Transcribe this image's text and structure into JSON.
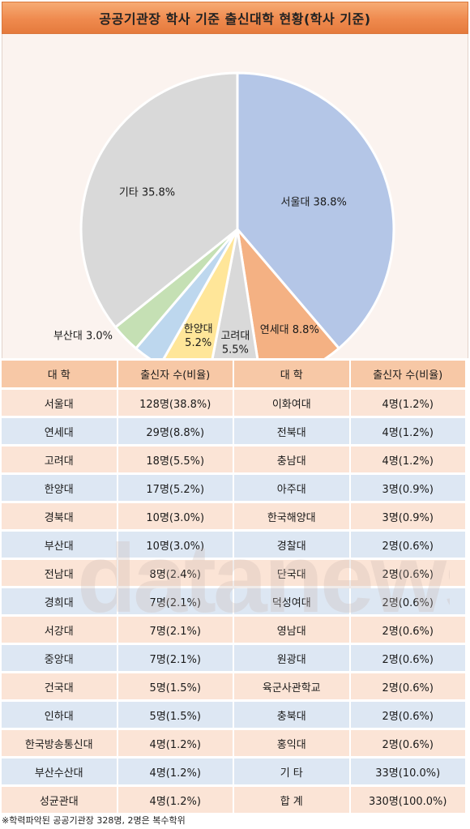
{
  "title": "공공기관장 학사 기준 출신대학 현황(학사 기준)",
  "chart_data": {
    "type": "pie",
    "title": "공공기관장 학사 기준 출신대학 현황(학사 기준)",
    "slices": [
      {
        "label": "서울대",
        "value": 38.8,
        "display": "서울대 38.8%",
        "color": "#b4c6e7"
      },
      {
        "label": "연세대",
        "value": 8.8,
        "display": "연세대 8.8%",
        "color": "#f4b183"
      },
      {
        "label": "고려대",
        "value": 5.5,
        "display": "고려대\n5.5%",
        "color": "#d9d9d9"
      },
      {
        "label": "한양대",
        "value": 5.2,
        "display": "한양대\n5.2%",
        "color": "#ffe699"
      },
      {
        "label": "경북대",
        "value": 3.0,
        "display": "경북대 3.0%",
        "color": "#bdd7ee"
      },
      {
        "label": "부산대",
        "value": 3.0,
        "display": "부산대 3.0%",
        "color": "#c5e0b4"
      },
      {
        "label": "기타",
        "value": 35.8,
        "display": "기타 35.8%",
        "color": "#d9d9d9"
      }
    ]
  },
  "table": {
    "headers": [
      "대 학",
      "출신자 수(비율)",
      "대 학",
      "출신자 수(비율)"
    ],
    "rows": [
      [
        "서울대",
        "128명(38.8%)",
        "이화여대",
        "4명(1.2%)"
      ],
      [
        "연세대",
        "29명(8.8%)",
        "전북대",
        "4명(1.2%)"
      ],
      [
        "고려대",
        "18명(5.5%)",
        "충남대",
        "4명(1.2%)"
      ],
      [
        "한양대",
        "17명(5.2%)",
        "아주대",
        "3명(0.9%)"
      ],
      [
        "경북대",
        "10명(3.0%)",
        "한국해양대",
        "3명(0.9%)"
      ],
      [
        "부산대",
        "10명(3.0%)",
        "경찰대",
        "2명(0.6%)"
      ],
      [
        "전남대",
        "8명(2.4%)",
        "단국대",
        "2명(0.6%)"
      ],
      [
        "경희대",
        "7명(2.1%)",
        "덕성여대",
        "2명(0.6%)"
      ],
      [
        "서강대",
        "7명(2.1%)",
        "영남대",
        "2명(0.6%)"
      ],
      [
        "중앙대",
        "7명(2.1%)",
        "원광대",
        "2명(0.6%)"
      ],
      [
        "건국대",
        "5명(1.5%)",
        "육군사관학교",
        "2명(0.6%)"
      ],
      [
        "인하대",
        "5명(1.5%)",
        "충북대",
        "2명(0.6%)"
      ],
      [
        "한국방송통신대",
        "4명(1.2%)",
        "홍익대",
        "2명(0.6%)"
      ],
      [
        "부산수산대",
        "4명(1.2%)",
        "기 타",
        "33명(10.0%)"
      ],
      [
        "성균관대",
        "4명(1.2%)",
        "합 계",
        "330명(100.0%)"
      ]
    ]
  },
  "footnote": "※학력파악된 공공기관장 328명, 2명은 복수학위",
  "watermark": "datanews"
}
